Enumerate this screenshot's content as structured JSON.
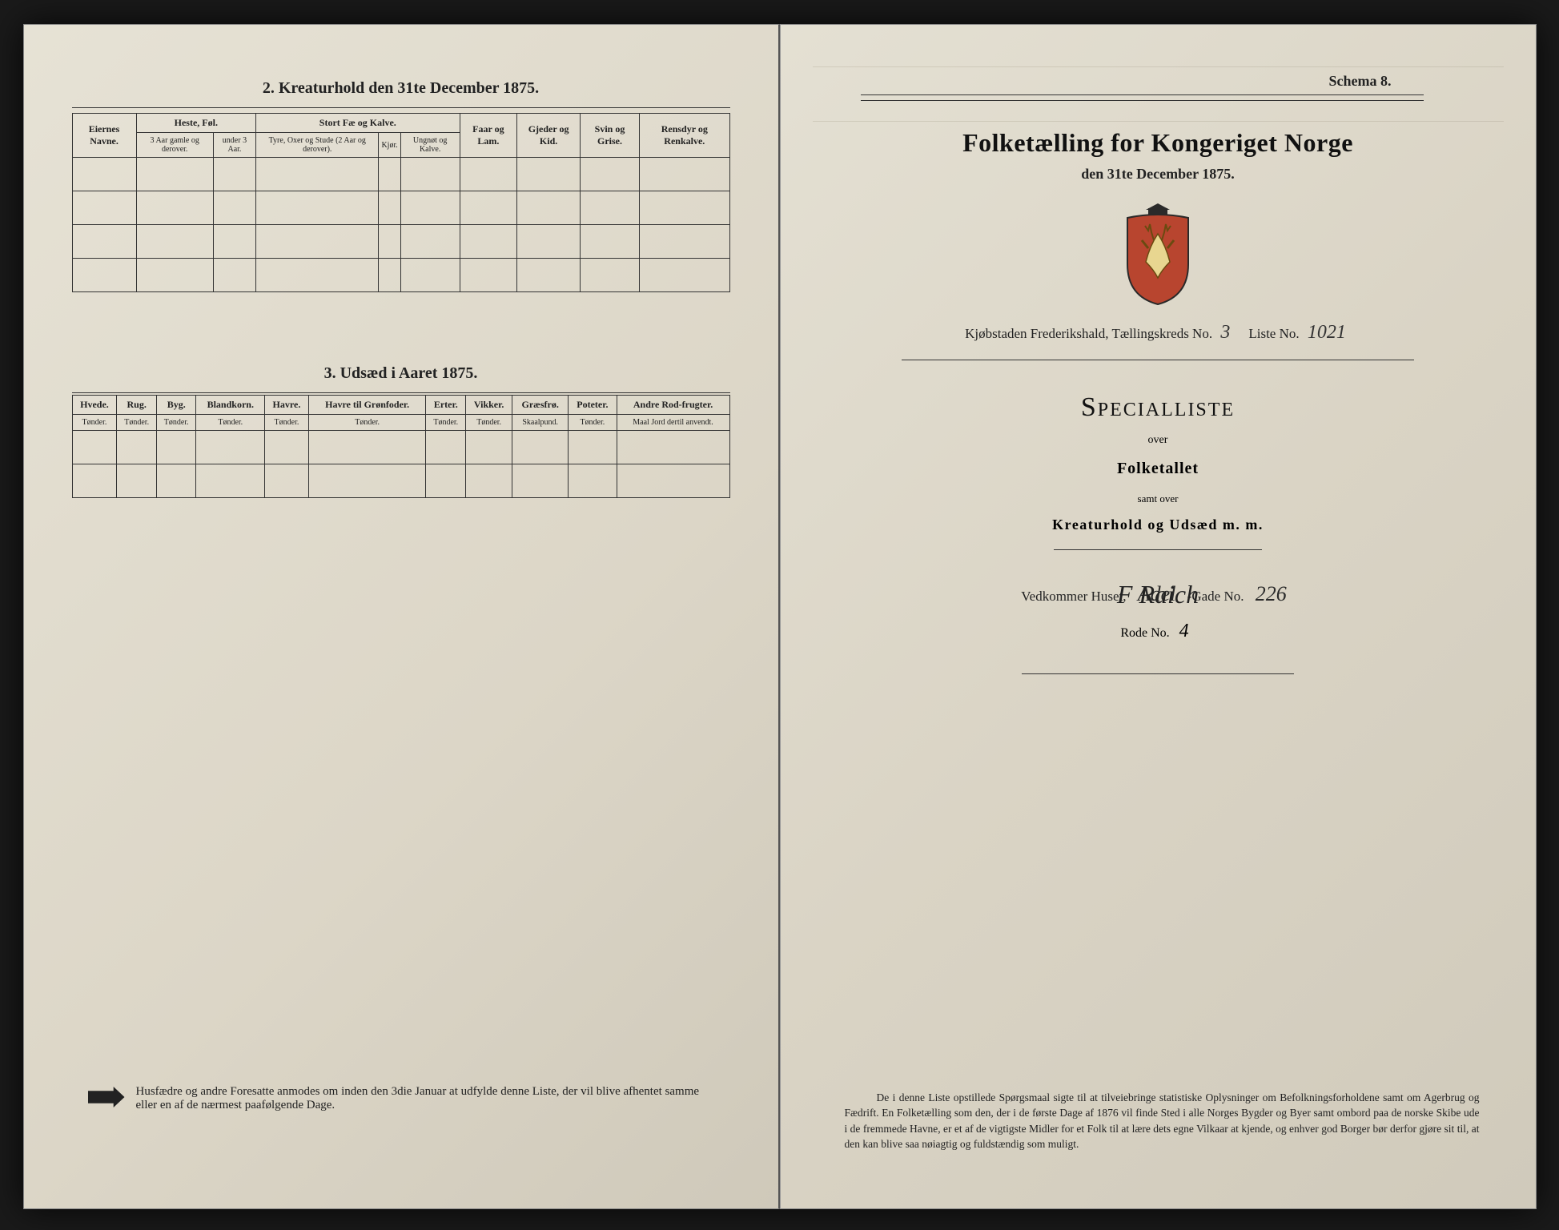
{
  "left": {
    "section2_title": "2. Kreaturhold den 31te December 1875.",
    "table2": {
      "cols_top": [
        {
          "label": "Eiernes Navne.",
          "rowspan": 2,
          "colspan": 1
        },
        {
          "label": "Heste, Føl.",
          "rowspan": 1,
          "colspan": 2
        },
        {
          "label": "Stort Fæ og Kalve.",
          "rowspan": 1,
          "colspan": 3
        },
        {
          "label": "Faar og Lam.",
          "rowspan": 2,
          "colspan": 1
        },
        {
          "label": "Gjeder og Kid.",
          "rowspan": 2,
          "colspan": 1
        },
        {
          "label": "Svin og Grise.",
          "rowspan": 2,
          "colspan": 1
        },
        {
          "label": "Rensdyr og Renkalve.",
          "rowspan": 2,
          "colspan": 1
        }
      ],
      "cols_sub": [
        "3 Aar gamle og derover.",
        "under 3 Aar.",
        "Tyre, Oxer og Stude (2 Aar og derover).",
        "Kjør.",
        "Ungnøt og Kalve."
      ],
      "blank_rows": 4
    },
    "section3_title": "3. Udsæd i Aaret 1875.",
    "table3": {
      "cols_top": [
        "Hvede.",
        "Rug.",
        "Byg.",
        "Blandkorn.",
        "Havre.",
        "Havre til Grønfoder.",
        "Erter.",
        "Vikker.",
        "Græsfrø.",
        "Poteter.",
        "Andre Rod-frugter."
      ],
      "cols_sub": [
        "Tønder.",
        "Tønder.",
        "Tønder.",
        "Tønder.",
        "Tønder.",
        "Tønder.",
        "Tønder.",
        "Tønder.",
        "Skaalpund.",
        "Tønder.",
        "Maal Jord dertil anvendt."
      ],
      "blank_rows": 2
    },
    "footnote": "Husfædre og andre Foresatte anmodes om inden den 3die Januar at udfylde denne Liste, der vil blive afhentet samme eller en af de nærmest paafølgende Dage."
  },
  "right": {
    "schema": "Schema 8.",
    "title_main": "Folketælling for Kongeriget Norge",
    "title_sub": "den 31te December 1875.",
    "kreds_prefix": "Kjøbstaden Frederikshald,   Tællingskreds No.",
    "kreds_no": "3",
    "liste_prefix": "Liste No.",
    "liste_no": "1021",
    "special": "Specialliste",
    "over": "over",
    "folketallet": "Folketallet",
    "samt": "samt over",
    "kreatur": "Kreaturhold og Udsæd m. m.",
    "vedkommer_label": "Vedkommer Huset,",
    "street": "Adel",
    "gade_label": "-Gade No.",
    "gade_no": "226",
    "rode_label": "Rode No.",
    "rode_no": "4",
    "signature": "F Raich",
    "bottom_para": "De i denne Liste opstillede Spørgsmaal sigte til at tilveiebringe statistiske Oplysninger om Befolkningsforholdene samt om Agerbrug og Fædrift.  En Folketælling som den, der i de første Dage af 1876 vil finde Sted i alle Norges Bygder og Byer samt ombord paa de norske Skibe ude i de fremmede Havne, er et af de vigtigste Midler for et Folk til at lære dets egne Vilkaar at kjende, og enhver god Borger bør derfor gjøre sit til, at den kan blive saa nøiagtig og fuldstændig som muligt."
  },
  "colors": {
    "ink": "#222222",
    "paper_light": "#e8e4d8",
    "paper_dark": "#d0cabb",
    "border": "#333333",
    "bg": "#1a1a1a"
  }
}
